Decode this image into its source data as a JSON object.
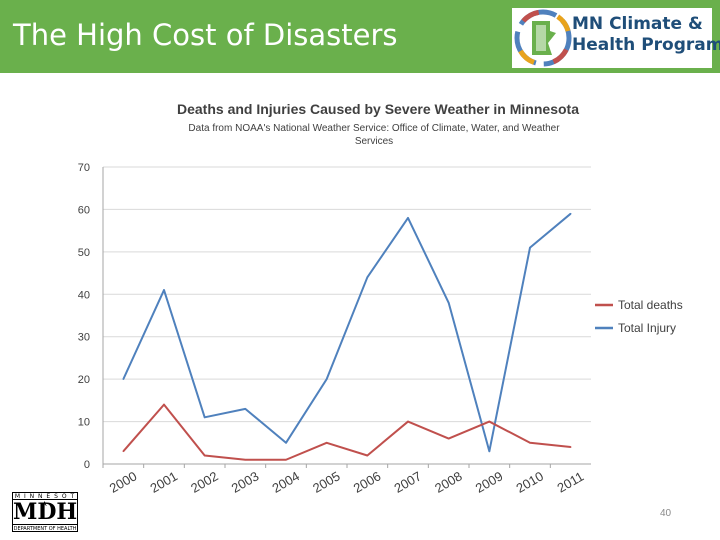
{
  "slide": {
    "title": "The High Cost of Disasters",
    "page_number": "40"
  },
  "logo": {
    "line1": "MN Climate &",
    "line2": "Health Program"
  },
  "mdh_logo": {
    "top": "M I N N E S O T A",
    "main": "MDH",
    "bottom": "DEPARTMENT OF HEALTH"
  },
  "colors": {
    "banner": "#6ab04c",
    "deaths": "#c0504d",
    "injury": "#4f81bd",
    "grid": "#d9d9d9",
    "text": "#404040"
  },
  "chart_data": {
    "type": "line",
    "title": "Deaths and Injuries Caused by Severe Weather in Minnesota",
    "subtitle_line1": "Data from NOAA's National Weather Service: Office of Climate, Water, and Weather",
    "subtitle_line2": "Services",
    "categories": [
      "2000",
      "2001",
      "2002",
      "2003",
      "2004",
      "2005",
      "2006",
      "2007",
      "2008",
      "2009",
      "2010",
      "2011"
    ],
    "series": [
      {
        "name": "Total deaths",
        "values": [
          3,
          14,
          2,
          1,
          1,
          5,
          2,
          10,
          6,
          10,
          5,
          4
        ]
      },
      {
        "name": "Total Injury",
        "values": [
          20,
          41,
          11,
          13,
          5,
          20,
          44,
          58,
          38,
          3,
          51,
          59
        ]
      }
    ],
    "yticks": [
      "0",
      "10",
      "20",
      "30",
      "40",
      "50",
      "60",
      "70"
    ],
    "ylim": [
      0,
      70
    ],
    "grid": true,
    "legend_position": "right"
  }
}
